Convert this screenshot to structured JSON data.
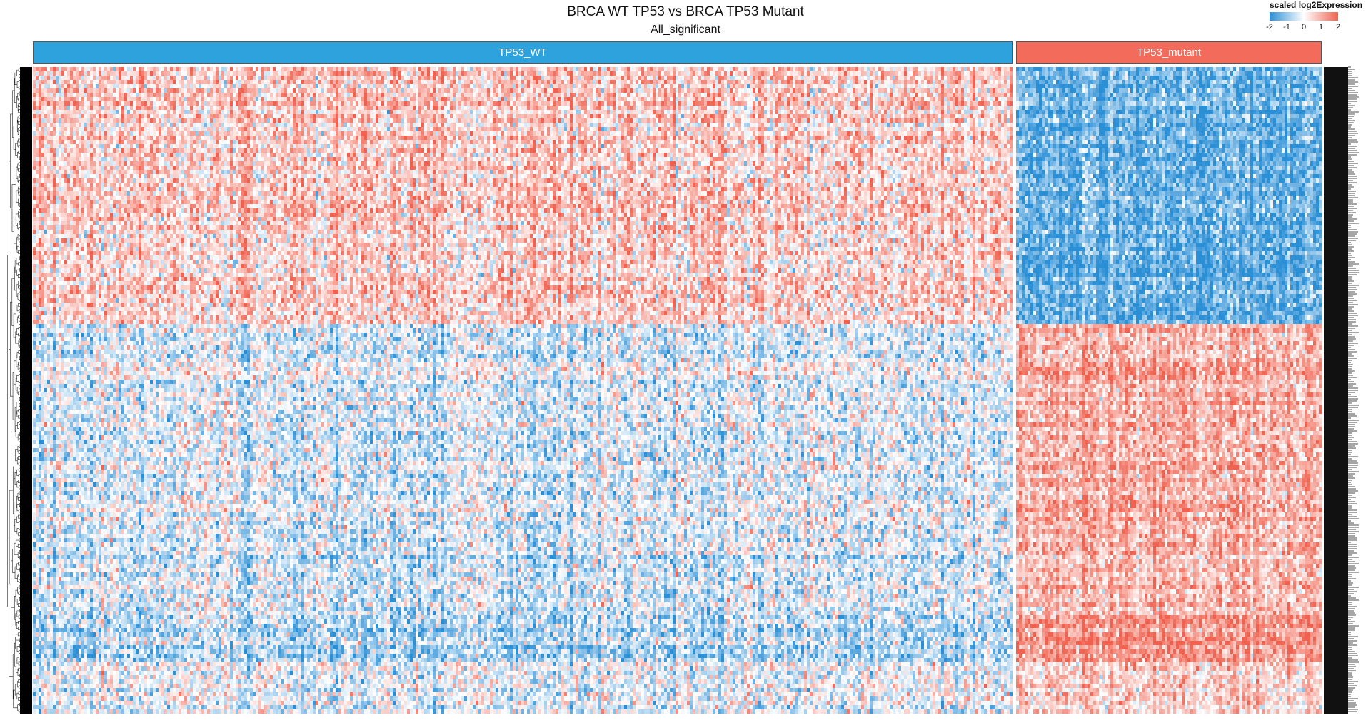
{
  "title": "BRCA WT TP53 vs BRCA TP53 Mutant",
  "subtitle": "All_significant",
  "legend": {
    "title": "scaled log2Expression",
    "ticks": [
      "-2",
      "-1",
      "0",
      "1",
      "2"
    ],
    "colors": {
      "low": "#2b8fd6",
      "mid": "#ffffff",
      "high": "#f0624f"
    }
  },
  "annotation": {
    "groups": [
      {
        "label": "TP53_WT",
        "color": "#2ea2dc"
      },
      {
        "label": "TP53_mutant",
        "color": "#f26b5b"
      }
    ]
  },
  "chart_data": {
    "type": "heatmap",
    "title": "BRCA WT TP53 vs BRCA TP53 Mutant",
    "subtitle": "All_significant",
    "color_scale": {
      "label": "scaled log2Expression",
      "min": -2,
      "max": 2,
      "ticks": [
        -2,
        -1,
        0,
        1,
        2
      ],
      "low": "#2b8fd6",
      "mid": "#ffffff",
      "high": "#f0624f"
    },
    "column_groups": [
      {
        "name": "TP53_WT",
        "approx_fraction": 0.76
      },
      {
        "name": "TP53_mutant",
        "approx_fraction": 0.24
      }
    ],
    "row_blocks": [
      {
        "approx_fraction": 0.4,
        "mean_WT": 0.6,
        "mean_mutant": -1.4
      },
      {
        "approx_fraction": 0.45,
        "mean_WT": -0.3,
        "mean_mutant": 0.9
      },
      {
        "approx_fraction": 0.07,
        "mean_WT": -0.7,
        "mean_mutant": 1.3
      },
      {
        "approx_fraction": 0.08,
        "mean_WT": -0.2,
        "mean_mutant": 0.5
      }
    ],
    "row_dendrogram": true,
    "row_labels_legible": false
  }
}
